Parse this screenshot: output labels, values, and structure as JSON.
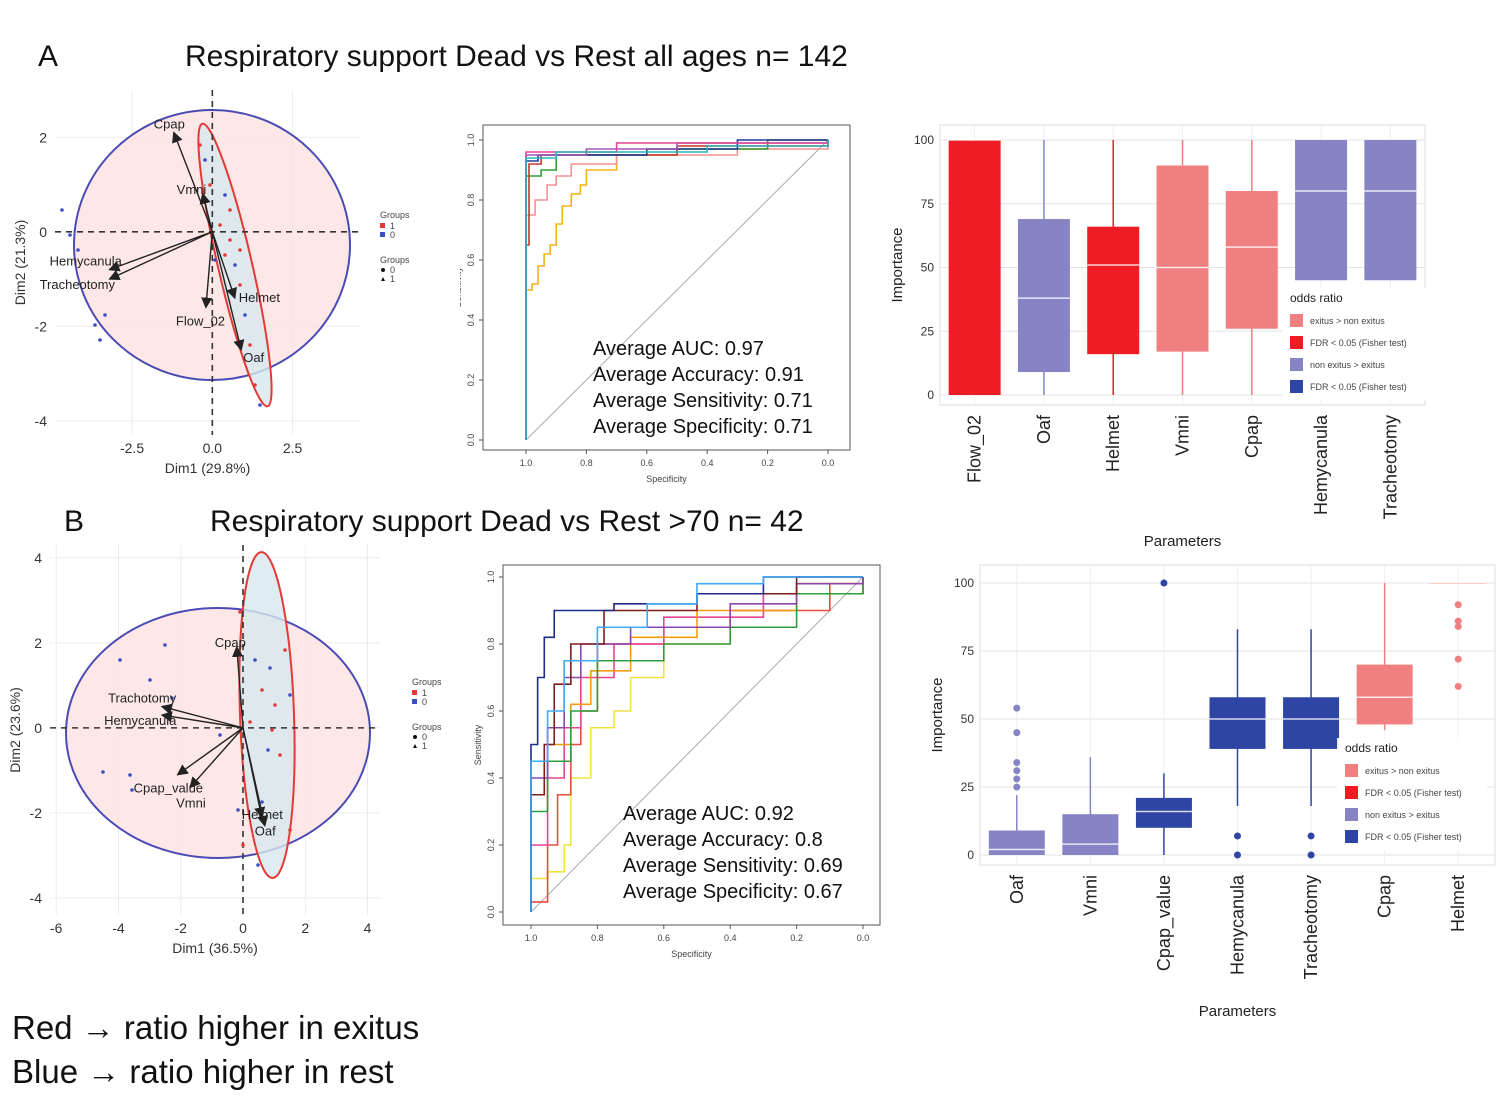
{
  "panels": [
    {
      "letter": "A",
      "title": "Respiratory support Dead vs Rest all ages n= 142"
    },
    {
      "letter": "B",
      "title": "Respiratory support Dead vs Rest >70 n= 42"
    }
  ],
  "notes": [
    "Red → ratio higher in exitus",
    "Blue → ratio higher in rest"
  ],
  "colors": {
    "exitus": "#ee1c25",
    "exitus_light": "#f08080",
    "rest": "#8684c4",
    "rest_dark": "#2f45a3"
  },
  "chart_data": [
    {
      "id": "A-pca",
      "type": "scatter",
      "xlabel": "Dim1 (29.8%)",
      "ylabel": "Dim2 (21.3%)",
      "xticks": [
        "-2.5",
        "0.0",
        "2.5"
      ],
      "yticks": [
        "2",
        "0",
        "-2",
        "-4"
      ],
      "xlim": [
        -4.9,
        4.6
      ],
      "ylim": [
        -4.3,
        3.0
      ],
      "legend_title": "Groups",
      "legend_items": [
        "1",
        "0"
      ],
      "legend2_items": [
        "0",
        "1"
      ],
      "loadings": [
        {
          "label": "Cpap",
          "x": -1.2,
          "y": 2.1
        },
        {
          "label": "Vmni",
          "x": -0.3,
          "y": 0.8
        },
        {
          "label": "Hemycanula",
          "x": -3.2,
          "y": -0.8
        },
        {
          "label": "Tracheotomy",
          "x": -3.2,
          "y": -1.0
        },
        {
          "label": "Helmet",
          "x": 0.7,
          "y": -1.4
        },
        {
          "label": "Flow_02",
          "x": -0.2,
          "y": -1.6
        },
        {
          "label": "Oaf",
          "x": 0.9,
          "y": -2.5
        }
      ]
    },
    {
      "id": "A-roc",
      "type": "line",
      "xlabel": "Specificity",
      "ylabel": "Sensitivity",
      "xticks": [
        "1.0",
        "0.8",
        "0.6",
        "0.4",
        "0.2",
        "0.0"
      ],
      "yticks": [
        "1.0",
        "0.8",
        "0.6",
        "0.4",
        "0.2",
        "0.0"
      ],
      "stats": [
        "Average AUC: 0.97",
        "Average Accuracy: 0.91",
        "Average Sensitivity: 0.71",
        "Average Specificity: 0.71"
      ],
      "series": [
        {
          "color": "#f4b21b",
          "points": [
            [
              1.0,
              0.0
            ],
            [
              1.0,
              0.5
            ],
            [
              0.98,
              0.52
            ],
            [
              0.96,
              0.58
            ],
            [
              0.94,
              0.62
            ],
            [
              0.92,
              0.65
            ],
            [
              0.9,
              0.72
            ],
            [
              0.88,
              0.78
            ],
            [
              0.85,
              0.82
            ],
            [
              0.82,
              0.85
            ],
            [
              0.8,
              0.9
            ],
            [
              0.7,
              0.95
            ],
            [
              0.5,
              0.97
            ],
            [
              0.2,
              1.0
            ],
            [
              0.0,
              1.0
            ]
          ]
        },
        {
          "color": "#f2918e",
          "points": [
            [
              1.0,
              0.0
            ],
            [
              1.0,
              0.75
            ],
            [
              0.97,
              0.8
            ],
            [
              0.93,
              0.85
            ],
            [
              0.9,
              0.88
            ],
            [
              0.85,
              0.92
            ],
            [
              0.7,
              0.95
            ],
            [
              0.3,
              0.97
            ],
            [
              0.0,
              1.0
            ]
          ]
        },
        {
          "color": "#2e9e3a",
          "points": [
            [
              1.0,
              0.0
            ],
            [
              1.0,
              0.88
            ],
            [
              0.95,
              0.9
            ],
            [
              0.9,
              0.95
            ],
            [
              0.6,
              0.97
            ],
            [
              0.2,
              1.0
            ],
            [
              0.0,
              1.0
            ]
          ]
        },
        {
          "color": "#c0392b",
          "points": [
            [
              1.0,
              0.0
            ],
            [
              1.0,
              0.65
            ],
            [
              0.99,
              0.92
            ],
            [
              0.95,
              0.95
            ],
            [
              0.5,
              0.98
            ],
            [
              0.0,
              1.0
            ]
          ]
        },
        {
          "color": "#1f3b9e",
          "points": [
            [
              1.0,
              0.0
            ],
            [
              1.0,
              0.93
            ],
            [
              0.96,
              0.95
            ],
            [
              0.6,
              0.97
            ],
            [
              0.3,
              1.0
            ],
            [
              0.0,
              1.0
            ]
          ]
        },
        {
          "color": "#9b59b6",
          "points": [
            [
              1.0,
              0.0
            ],
            [
              1.0,
              0.95
            ],
            [
              0.8,
              0.97
            ],
            [
              0.5,
              0.99
            ],
            [
              0.0,
              1.0
            ]
          ]
        },
        {
          "color": "#e84393",
          "points": [
            [
              1.0,
              0.0
            ],
            [
              1.0,
              0.96
            ],
            [
              0.7,
              0.99
            ],
            [
              0.0,
              1.0
            ]
          ]
        },
        {
          "color": "#2bb3c0",
          "points": [
            [
              1.0,
              0.0
            ],
            [
              1.0,
              0.94
            ],
            [
              0.9,
              0.96
            ],
            [
              0.4,
              0.98
            ],
            [
              0.0,
              1.0
            ]
          ]
        }
      ]
    },
    {
      "id": "A-imp",
      "type": "bar",
      "xlabel": "Parameters",
      "ylabel": "Importance",
      "yticks": [
        "100",
        "75",
        "50",
        "25",
        "0"
      ],
      "ylim": [
        0,
        100
      ],
      "categories": [
        "Flow_02",
        "Oaf",
        "Helmet",
        "Vmni",
        "Cpap",
        "Hemycanula",
        "Tracheotomy"
      ],
      "boxes": [
        {
          "q1": 0,
          "med": 100,
          "q3": 100,
          "lo": 0,
          "hi": 100,
          "color": "#ee1c25"
        },
        {
          "q1": 9,
          "med": 38,
          "q3": 69,
          "lo": 0,
          "hi": 100,
          "color": "#8684c4"
        },
        {
          "q1": 16,
          "med": 51,
          "q3": 66,
          "lo": 0,
          "hi": 100,
          "color": "#ee1c25"
        },
        {
          "q1": 17,
          "med": 50,
          "q3": 90,
          "lo": 0,
          "hi": 100,
          "color": "#f08080"
        },
        {
          "q1": 26,
          "med": 58,
          "q3": 80,
          "lo": 0,
          "hi": 100,
          "color": "#f08080"
        },
        {
          "q1": 45,
          "med": 80,
          "q3": 100,
          "lo": 45,
          "hi": 100,
          "color": "#8684c4"
        },
        {
          "q1": 45,
          "med": 80,
          "q3": 100,
          "lo": 45,
          "hi": 100,
          "color": "#8684c4"
        }
      ],
      "legend_title": "odds ratio",
      "legend_items": [
        "exitus > non exitus",
        "FDR < 0.05 (Fisher test)",
        "non exitus > exitus",
        "FDR < 0.05 (Fisher test)"
      ]
    },
    {
      "id": "B-pca",
      "type": "scatter",
      "xlabel": "Dim1 (36.5%)",
      "ylabel": "Dim2 (23.6%)",
      "xticks": [
        "-6",
        "-4",
        "-2",
        "0",
        "2",
        "4"
      ],
      "yticks": [
        "4",
        "2",
        "0",
        "-2",
        "-4"
      ],
      "xlim": [
        -6.2,
        4.4
      ],
      "ylim": [
        -4.4,
        4.3
      ],
      "legend_title": "Groups",
      "legend_items": [
        "1",
        "0"
      ],
      "legend2_items": [
        "0",
        "1"
      ],
      "loadings": [
        {
          "label": "Cpap",
          "x": -0.2,
          "y": 1.9
        },
        {
          "label": "Trachotomy",
          "x": -2.6,
          "y": 0.5
        },
        {
          "label": "Hemycanula",
          "x": -2.6,
          "y": 0.3
        },
        {
          "label": "Cpap_value",
          "x": -2.1,
          "y": -1.1
        },
        {
          "label": "Vmni",
          "x": -1.7,
          "y": -1.4
        },
        {
          "label": "Helmet",
          "x": 0.6,
          "y": -2.1
        },
        {
          "label": "Oaf",
          "x": 0.7,
          "y": -2.3
        }
      ]
    },
    {
      "id": "B-roc",
      "type": "line",
      "xlabel": "Specificity",
      "ylabel": "Sensitivity",
      "xticks": [
        "1.0",
        "0.8",
        "0.6",
        "0.4",
        "0.2",
        "0.0"
      ],
      "yticks": [
        "1.0",
        "0.8",
        "0.6",
        "0.4",
        "0.2",
        "0.0"
      ],
      "stats": [
        "Average AUC: 0.92",
        "Average Accuracy: 0.8",
        "Average Sensitivity: 0.69",
        "Average Specificity: 0.67"
      ],
      "series": [
        {
          "color": "#f0e442",
          "points": [
            [
              1.0,
              0.0
            ],
            [
              1.0,
              0.1
            ],
            [
              0.95,
              0.12
            ],
            [
              0.9,
              0.2
            ],
            [
              0.88,
              0.4
            ],
            [
              0.82,
              0.55
            ],
            [
              0.75,
              0.6
            ],
            [
              0.7,
              0.7
            ],
            [
              0.6,
              0.8
            ],
            [
              0.4,
              0.9
            ],
            [
              0.2,
              0.95
            ],
            [
              0.0,
              1.0
            ]
          ]
        },
        {
          "color": "#e74c3c",
          "points": [
            [
              1.0,
              0.0
            ],
            [
              1.0,
              0.03
            ],
            [
              0.95,
              0.2
            ],
            [
              0.92,
              0.35
            ],
            [
              0.88,
              0.5
            ],
            [
              0.85,
              0.6
            ],
            [
              0.8,
              0.8
            ],
            [
              0.6,
              0.85
            ],
            [
              0.4,
              0.9
            ],
            [
              0.1,
              0.98
            ],
            [
              0.0,
              1.0
            ]
          ]
        },
        {
          "color": "#e84393",
          "points": [
            [
              1.0,
              0.0
            ],
            [
              1.0,
              0.2
            ],
            [
              0.95,
              0.4
            ],
            [
              0.9,
              0.55
            ],
            [
              0.85,
              0.7
            ],
            [
              0.75,
              0.8
            ],
            [
              0.6,
              0.88
            ],
            [
              0.3,
              0.95
            ],
            [
              0.0,
              1.0
            ]
          ]
        },
        {
          "color": "#f39c12",
          "points": [
            [
              1.0,
              0.0
            ],
            [
              1.0,
              0.45
            ],
            [
              0.95,
              0.5
            ],
            [
              0.88,
              0.62
            ],
            [
              0.82,
              0.72
            ],
            [
              0.7,
              0.82
            ],
            [
              0.5,
              0.9
            ],
            [
              0.2,
              0.98
            ],
            [
              0.0,
              1.0
            ]
          ]
        },
        {
          "color": "#2e9e3a",
          "points": [
            [
              1.0,
              0.0
            ],
            [
              1.0,
              0.3
            ],
            [
              0.95,
              0.45
            ],
            [
              0.88,
              0.6
            ],
            [
              0.8,
              0.75
            ],
            [
              0.6,
              0.8
            ],
            [
              0.4,
              0.85
            ],
            [
              0.2,
              0.95
            ],
            [
              0.0,
              1.0
            ]
          ]
        },
        {
          "color": "#8e44ad",
          "points": [
            [
              1.0,
              0.0
            ],
            [
              1.0,
              0.4
            ],
            [
              0.95,
              0.55
            ],
            [
              0.9,
              0.7
            ],
            [
              0.85,
              0.8
            ],
            [
              0.7,
              0.85
            ],
            [
              0.4,
              0.92
            ],
            [
              0.2,
              0.98
            ],
            [
              0.0,
              1.0
            ]
          ]
        },
        {
          "color": "#7b1e1e",
          "points": [
            [
              1.0,
              0.0
            ],
            [
              1.0,
              0.35
            ],
            [
              0.96,
              0.5
            ],
            [
              0.93,
              0.68
            ],
            [
              0.88,
              0.8
            ],
            [
              0.78,
              0.9
            ],
            [
              0.5,
              0.95
            ],
            [
              0.2,
              1.0
            ],
            [
              0.0,
              1.0
            ]
          ]
        },
        {
          "color": "#1f2a8a",
          "points": [
            [
              1.0,
              0.0
            ],
            [
              1.0,
              0.5
            ],
            [
              0.98,
              0.7
            ],
            [
              0.96,
              0.82
            ],
            [
              0.93,
              0.9
            ],
            [
              0.85,
              0.9
            ],
            [
              0.75,
              0.92
            ],
            [
              0.5,
              0.95
            ],
            [
              0.3,
              1.0
            ],
            [
              0.0,
              1.0
            ]
          ]
        },
        {
          "color": "#3fa9f5",
          "points": [
            [
              1.0,
              0.0
            ],
            [
              1.0,
              0.45
            ],
            [
              0.95,
              0.6
            ],
            [
              0.9,
              0.75
            ],
            [
              0.8,
              0.85
            ],
            [
              0.65,
              0.92
            ],
            [
              0.5,
              0.98
            ],
            [
              0.3,
              1.0
            ],
            [
              0.0,
              1.0
            ]
          ]
        }
      ]
    },
    {
      "id": "B-imp",
      "type": "bar",
      "xlabel": "Parameters",
      "ylabel": "Importance",
      "yticks": [
        "100",
        "75",
        "50",
        "25",
        "0"
      ],
      "ylim": [
        0,
        100
      ],
      "categories": [
        "Oaf",
        "Vmni",
        "Cpap_value",
        "Hemycanula",
        "Tracheotomy",
        "Cpap",
        "Helmet"
      ],
      "boxes": [
        {
          "q1": 0,
          "med": 2,
          "q3": 9,
          "lo": 0,
          "hi": 22,
          "color": "#8684c4",
          "outliers": [
            25,
            28,
            31,
            34,
            45,
            54
          ]
        },
        {
          "q1": 0,
          "med": 4,
          "q3": 15,
          "lo": 0,
          "hi": 36,
          "color": "#8684c4",
          "outliers": []
        },
        {
          "q1": 10,
          "med": 16,
          "q3": 21,
          "lo": 0,
          "hi": 30,
          "color": "#2f45a3",
          "outliers": [
            100
          ]
        },
        {
          "q1": 39,
          "med": 50,
          "q3": 58,
          "lo": 18,
          "hi": 83,
          "color": "#2f45a3",
          "outliers": [
            0,
            7
          ]
        },
        {
          "q1": 39,
          "med": 50,
          "q3": 58,
          "lo": 18,
          "hi": 83,
          "color": "#2f45a3",
          "outliers": [
            0,
            7
          ]
        },
        {
          "q1": 48,
          "med": 58,
          "q3": 70,
          "lo": 46,
          "hi": 100,
          "color": "#f08080",
          "outliers": []
        },
        {
          "q1": 100,
          "med": 100,
          "q3": 100,
          "lo": 100,
          "hi": 100,
          "color": "#f08080",
          "outliers": [
            62,
            72,
            84,
            86,
            92
          ]
        }
      ],
      "legend_title": "odds ratio",
      "legend_items": [
        "exitus > non exitus",
        "FDR < 0.05 (Fisher test)",
        "non exitus > exitus",
        "FDR < 0.05 (Fisher test)"
      ]
    }
  ]
}
